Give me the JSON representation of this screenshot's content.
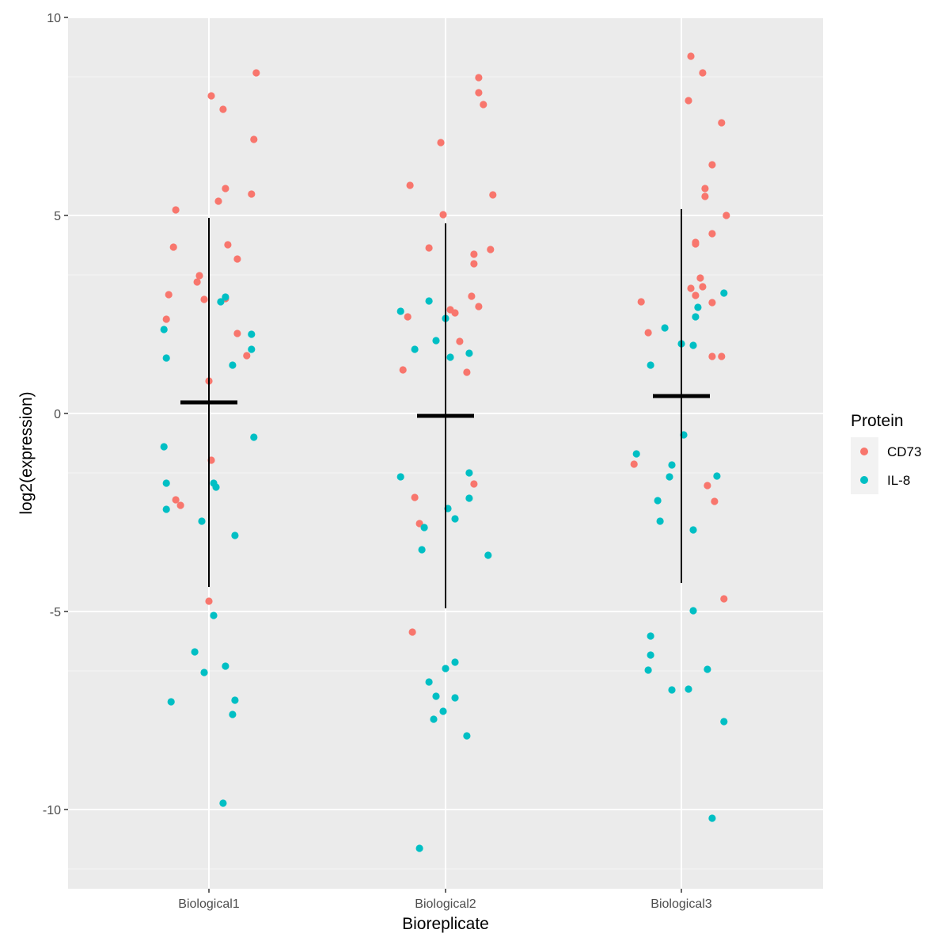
{
  "chart_data": {
    "type": "scatter",
    "xlabel": "Bioreplicate",
    "ylabel": "log2(expression)",
    "categories": [
      "Biological1",
      "Biological2",
      "Biological3"
    ],
    "ylim": [
      -12,
      10
    ],
    "yticks": [
      -10,
      -5,
      0,
      5,
      10
    ],
    "ytick_labels": [
      "-10",
      "-5",
      "0",
      "5",
      "10"
    ],
    "grid": true,
    "legend": {
      "title": "Protein",
      "placement": "right",
      "entries": [
        {
          "name": "CD73",
          "color": "#F8766D"
        },
        {
          "name": "IL-8",
          "color": "#00BFC4"
        }
      ]
    },
    "summary": [
      {
        "category": "Biological1",
        "mean": 0.28,
        "lower": -4.38,
        "upper": 4.94
      },
      {
        "category": "Biological2",
        "mean": -0.06,
        "lower": -4.92,
        "upper": 4.8
      },
      {
        "category": "Biological3",
        "mean": 0.44,
        "lower": -4.28,
        "upper": 5.16
      }
    ],
    "series": [
      {
        "name": "CD73",
        "color": "#F8766D",
        "points": [
          {
            "category": "Biological1",
            "jitter": 0.01,
            "y": 8.02
          },
          {
            "category": "Biological1",
            "jitter": 0.06,
            "y": 7.68
          },
          {
            "category": "Biological1",
            "jitter": 0.2,
            "y": 8.6
          },
          {
            "category": "Biological1",
            "jitter": 0.19,
            "y": 6.92
          },
          {
            "category": "Biological1",
            "jitter": 0.07,
            "y": 5.68
          },
          {
            "category": "Biological1",
            "jitter": 0.04,
            "y": 5.36
          },
          {
            "category": "Biological1",
            "jitter": 0.18,
            "y": 5.54
          },
          {
            "category": "Biological1",
            "jitter": -0.14,
            "y": 5.14
          },
          {
            "category": "Biological1",
            "jitter": -0.15,
            "y": 4.2
          },
          {
            "category": "Biological1",
            "jitter": 0.08,
            "y": 4.26
          },
          {
            "category": "Biological1",
            "jitter": 0.12,
            "y": 3.9
          },
          {
            "category": "Biological1",
            "jitter": -0.04,
            "y": 3.48
          },
          {
            "category": "Biological1",
            "jitter": -0.05,
            "y": 3.32
          },
          {
            "category": "Biological1",
            "jitter": -0.17,
            "y": 3.0
          },
          {
            "category": "Biological1",
            "jitter": -0.02,
            "y": 2.88
          },
          {
            "category": "Biological1",
            "jitter": 0.07,
            "y": 2.9
          },
          {
            "category": "Biological1",
            "jitter": -0.18,
            "y": 2.38
          },
          {
            "category": "Biological1",
            "jitter": 0.12,
            "y": 2.02
          },
          {
            "category": "Biological1",
            "jitter": 0.16,
            "y": 1.46
          },
          {
            "category": "Biological1",
            "jitter": 0.0,
            "y": 0.82
          },
          {
            "category": "Biological1",
            "jitter": 0.01,
            "y": -1.18
          },
          {
            "category": "Biological1",
            "jitter": -0.14,
            "y": -2.18
          },
          {
            "category": "Biological1",
            "jitter": -0.12,
            "y": -2.32
          },
          {
            "category": "Biological1",
            "jitter": 0.0,
            "y": -4.74
          },
          {
            "category": "Biological2",
            "jitter": 0.14,
            "y": 8.48
          },
          {
            "category": "Biological2",
            "jitter": 0.14,
            "y": 8.1
          },
          {
            "category": "Biological2",
            "jitter": 0.16,
            "y": 7.8
          },
          {
            "category": "Biological2",
            "jitter": -0.02,
            "y": 6.84
          },
          {
            "category": "Biological2",
            "jitter": -0.15,
            "y": 5.76
          },
          {
            "category": "Biological2",
            "jitter": -0.01,
            "y": 5.02
          },
          {
            "category": "Biological2",
            "jitter": 0.2,
            "y": 5.52
          },
          {
            "category": "Biological2",
            "jitter": -0.07,
            "y": 4.18
          },
          {
            "category": "Biological2",
            "jitter": 0.12,
            "y": 4.02
          },
          {
            "category": "Biological2",
            "jitter": 0.19,
            "y": 4.14
          },
          {
            "category": "Biological2",
            "jitter": 0.12,
            "y": 3.78
          },
          {
            "category": "Biological2",
            "jitter": 0.11,
            "y": 2.96
          },
          {
            "category": "Biological2",
            "jitter": 0.14,
            "y": 2.7
          },
          {
            "category": "Biological2",
            "jitter": 0.02,
            "y": 2.62
          },
          {
            "category": "Biological2",
            "jitter": 0.04,
            "y": 2.54
          },
          {
            "category": "Biological2",
            "jitter": -0.16,
            "y": 2.44
          },
          {
            "category": "Biological2",
            "jitter": 0.06,
            "y": 1.82
          },
          {
            "category": "Biological2",
            "jitter": -0.18,
            "y": 1.1
          },
          {
            "category": "Biological2",
            "jitter": 0.09,
            "y": 1.04
          },
          {
            "category": "Biological2",
            "jitter": 0.12,
            "y": -1.78
          },
          {
            "category": "Biological2",
            "jitter": -0.13,
            "y": -2.12
          },
          {
            "category": "Biological2",
            "jitter": -0.11,
            "y": -2.78
          },
          {
            "category": "Biological2",
            "jitter": -0.14,
            "y": -5.52
          },
          {
            "category": "Biological3",
            "jitter": 0.04,
            "y": 9.02
          },
          {
            "category": "Biological3",
            "jitter": 0.09,
            "y": 8.6
          },
          {
            "category": "Biological3",
            "jitter": 0.03,
            "y": 7.9
          },
          {
            "category": "Biological3",
            "jitter": 0.17,
            "y": 7.34
          },
          {
            "category": "Biological3",
            "jitter": 0.13,
            "y": 6.28
          },
          {
            "category": "Biological3",
            "jitter": 0.1,
            "y": 5.68
          },
          {
            "category": "Biological3",
            "jitter": 0.1,
            "y": 5.48
          },
          {
            "category": "Biological3",
            "jitter": 0.19,
            "y": 5.0
          },
          {
            "category": "Biological3",
            "jitter": 0.13,
            "y": 4.54
          },
          {
            "category": "Biological3",
            "jitter": 0.06,
            "y": 4.32
          },
          {
            "category": "Biological3",
            "jitter": 0.06,
            "y": 4.28
          },
          {
            "category": "Biological3",
            "jitter": 0.08,
            "y": 3.42
          },
          {
            "category": "Biological3",
            "jitter": 0.04,
            "y": 3.16
          },
          {
            "category": "Biological3",
            "jitter": 0.09,
            "y": 3.2
          },
          {
            "category": "Biological3",
            "jitter": 0.06,
            "y": 2.98
          },
          {
            "category": "Biological3",
            "jitter": -0.17,
            "y": 2.82
          },
          {
            "category": "Biological3",
            "jitter": 0.13,
            "y": 2.8
          },
          {
            "category": "Biological3",
            "jitter": -0.14,
            "y": 2.04
          },
          {
            "category": "Biological3",
            "jitter": 0.13,
            "y": 1.44
          },
          {
            "category": "Biological3",
            "jitter": 0.17,
            "y": 1.44
          },
          {
            "category": "Biological3",
            "jitter": -0.2,
            "y": -1.28
          },
          {
            "category": "Biological3",
            "jitter": 0.11,
            "y": -1.82
          },
          {
            "category": "Biological3",
            "jitter": 0.14,
            "y": -2.22
          },
          {
            "category": "Biological3",
            "jitter": 0.18,
            "y": -4.68
          }
        ]
      },
      {
        "name": "IL-8",
        "color": "#00BFC4",
        "points": [
          {
            "category": "Biological1",
            "jitter": -0.19,
            "y": 2.12
          },
          {
            "category": "Biological1",
            "jitter": -0.18,
            "y": 1.4
          },
          {
            "category": "Biological1",
            "jitter": 0.07,
            "y": 2.94
          },
          {
            "category": "Biological1",
            "jitter": 0.05,
            "y": 2.82
          },
          {
            "category": "Biological1",
            "jitter": 0.18,
            "y": 2.0
          },
          {
            "category": "Biological1",
            "jitter": 0.18,
            "y": 1.62
          },
          {
            "category": "Biological1",
            "jitter": 0.1,
            "y": 1.22
          },
          {
            "category": "Biological1",
            "jitter": 0.19,
            "y": -0.6
          },
          {
            "category": "Biological1",
            "jitter": -0.19,
            "y": -0.84
          },
          {
            "category": "Biological1",
            "jitter": -0.18,
            "y": -1.76
          },
          {
            "category": "Biological1",
            "jitter": 0.02,
            "y": -1.76
          },
          {
            "category": "Biological1",
            "jitter": 0.03,
            "y": -1.86
          },
          {
            "category": "Biological1",
            "jitter": -0.18,
            "y": -2.42
          },
          {
            "category": "Biological1",
            "jitter": -0.03,
            "y": -2.72
          },
          {
            "category": "Biological1",
            "jitter": 0.11,
            "y": -3.08
          },
          {
            "category": "Biological1",
            "jitter": 0.02,
            "y": -5.1
          },
          {
            "category": "Biological1",
            "jitter": -0.06,
            "y": -6.02
          },
          {
            "category": "Biological1",
            "jitter": 0.07,
            "y": -6.38
          },
          {
            "category": "Biological1",
            "jitter": -0.02,
            "y": -6.54
          },
          {
            "category": "Biological1",
            "jitter": -0.16,
            "y": -7.28
          },
          {
            "category": "Biological1",
            "jitter": 0.11,
            "y": -7.24
          },
          {
            "category": "Biological1",
            "jitter": 0.1,
            "y": -7.6
          },
          {
            "category": "Biological1",
            "jitter": 0.06,
            "y": -9.84
          },
          {
            "category": "Biological2",
            "jitter": -0.19,
            "y": 2.58
          },
          {
            "category": "Biological2",
            "jitter": -0.07,
            "y": 2.84
          },
          {
            "category": "Biological2",
            "jitter": 0.0,
            "y": 2.4
          },
          {
            "category": "Biological2",
            "jitter": -0.13,
            "y": 1.62
          },
          {
            "category": "Biological2",
            "jitter": -0.04,
            "y": 1.84
          },
          {
            "category": "Biological2",
            "jitter": 0.02,
            "y": 1.42
          },
          {
            "category": "Biological2",
            "jitter": 0.1,
            "y": 1.52
          },
          {
            "category": "Biological2",
            "jitter": -0.19,
            "y": -1.6
          },
          {
            "category": "Biological2",
            "jitter": 0.1,
            "y": -1.5
          },
          {
            "category": "Biological2",
            "jitter": 0.1,
            "y": -2.14
          },
          {
            "category": "Biological2",
            "jitter": 0.01,
            "y": -2.4
          },
          {
            "category": "Biological2",
            "jitter": 0.04,
            "y": -2.66
          },
          {
            "category": "Biological2",
            "jitter": -0.09,
            "y": -2.88
          },
          {
            "category": "Biological2",
            "jitter": -0.1,
            "y": -3.44
          },
          {
            "category": "Biological2",
            "jitter": 0.18,
            "y": -3.58
          },
          {
            "category": "Biological2",
            "jitter": 0.04,
            "y": -6.28
          },
          {
            "category": "Biological2",
            "jitter": 0.0,
            "y": -6.44
          },
          {
            "category": "Biological2",
            "jitter": -0.07,
            "y": -6.78
          },
          {
            "category": "Biological2",
            "jitter": -0.04,
            "y": -7.14
          },
          {
            "category": "Biological2",
            "jitter": 0.04,
            "y": -7.18
          },
          {
            "category": "Biological2",
            "jitter": -0.01,
            "y": -7.52
          },
          {
            "category": "Biological2",
            "jitter": -0.05,
            "y": -7.72
          },
          {
            "category": "Biological2",
            "jitter": 0.09,
            "y": -8.14
          },
          {
            "category": "Biological2",
            "jitter": -0.11,
            "y": -10.98
          },
          {
            "category": "Biological3",
            "jitter": 0.18,
            "y": 3.04
          },
          {
            "category": "Biological3",
            "jitter": 0.07,
            "y": 2.68
          },
          {
            "category": "Biological3",
            "jitter": 0.06,
            "y": 2.44
          },
          {
            "category": "Biological3",
            "jitter": -0.07,
            "y": 2.16
          },
          {
            "category": "Biological3",
            "jitter": 0.0,
            "y": 1.76
          },
          {
            "category": "Biological3",
            "jitter": 0.05,
            "y": 1.72
          },
          {
            "category": "Biological3",
            "jitter": -0.13,
            "y": 1.22
          },
          {
            "category": "Biological3",
            "jitter": 0.01,
            "y": -0.54
          },
          {
            "category": "Biological3",
            "jitter": -0.19,
            "y": -1.02
          },
          {
            "category": "Biological3",
            "jitter": -0.04,
            "y": -1.3
          },
          {
            "category": "Biological3",
            "jitter": -0.05,
            "y": -1.6
          },
          {
            "category": "Biological3",
            "jitter": 0.15,
            "y": -1.58
          },
          {
            "category": "Biological3",
            "jitter": -0.1,
            "y": -2.2
          },
          {
            "category": "Biological3",
            "jitter": -0.09,
            "y": -2.72
          },
          {
            "category": "Biological3",
            "jitter": 0.05,
            "y": -2.94
          },
          {
            "category": "Biological3",
            "jitter": 0.05,
            "y": -4.98
          },
          {
            "category": "Biological3",
            "jitter": -0.13,
            "y": -5.62
          },
          {
            "category": "Biological3",
            "jitter": -0.13,
            "y": -6.1
          },
          {
            "category": "Biological3",
            "jitter": -0.14,
            "y": -6.48
          },
          {
            "category": "Biological3",
            "jitter": 0.11,
            "y": -6.46
          },
          {
            "category": "Biological3",
            "jitter": -0.04,
            "y": -6.98
          },
          {
            "category": "Biological3",
            "jitter": 0.03,
            "y": -6.96
          },
          {
            "category": "Biological3",
            "jitter": 0.18,
            "y": -7.78
          },
          {
            "category": "Biological3",
            "jitter": 0.13,
            "y": -10.22
          }
        ]
      }
    ]
  }
}
